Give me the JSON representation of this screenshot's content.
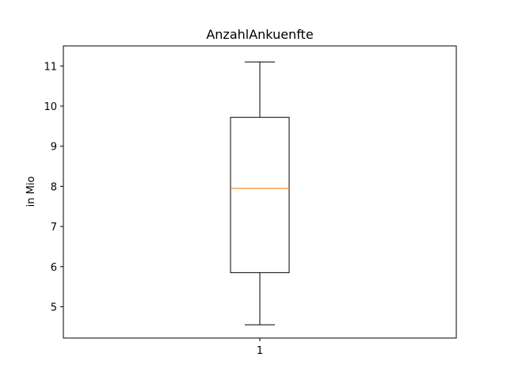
{
  "chart_data": {
    "type": "boxplot",
    "title": "AnzahlAnkuenfte",
    "xlabel": "",
    "ylabel": "in Mio",
    "ylim": [
      4.22,
      11.5
    ],
    "yticks": [
      5,
      6,
      7,
      8,
      9,
      10,
      11
    ],
    "categories": [
      "1"
    ],
    "boxes": [
      {
        "category": "1",
        "whisker_low": 4.55,
        "q1": 5.85,
        "median": 7.95,
        "q3": 9.72,
        "whisker_high": 11.1
      }
    ],
    "grid": false,
    "colors": {
      "box": "#000000",
      "median": "#ff7f0e",
      "axes": "#000000"
    }
  }
}
